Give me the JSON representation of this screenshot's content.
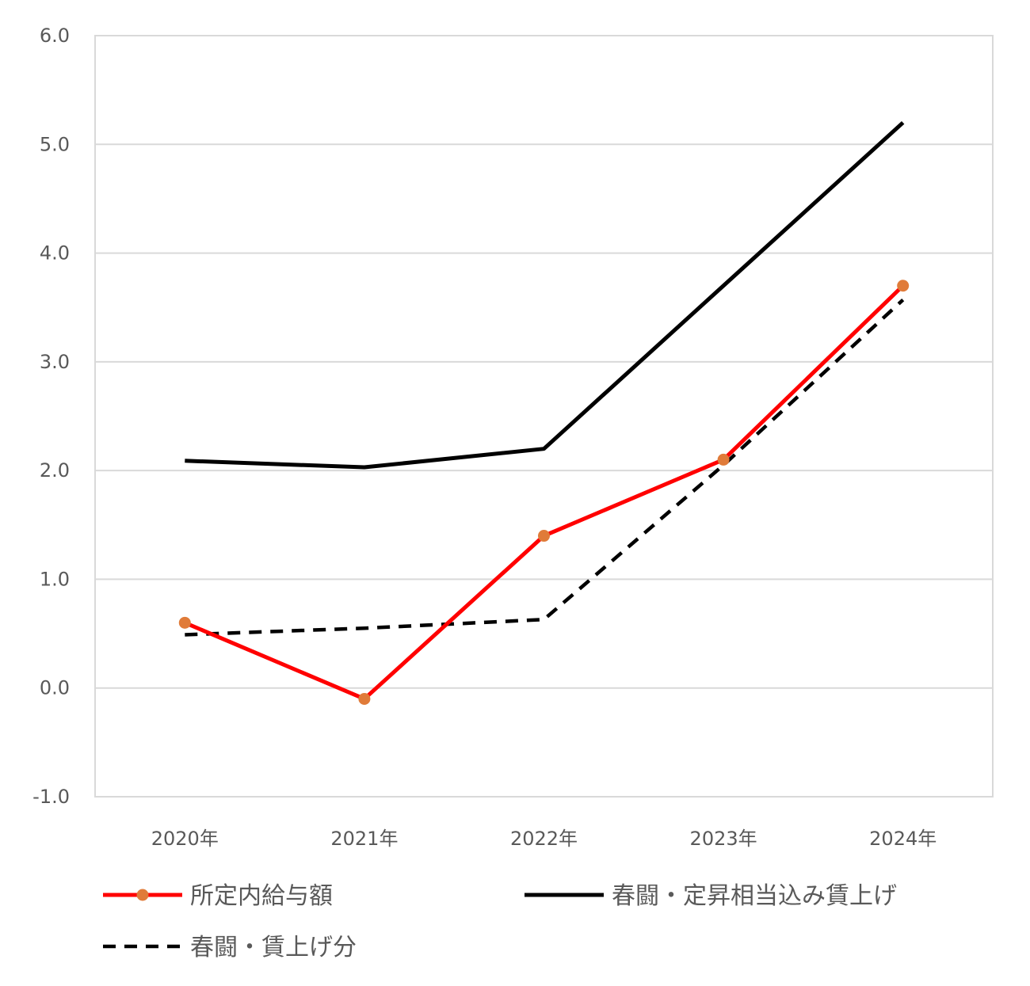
{
  "chart_data": {
    "type": "line",
    "categories": [
      "2020年",
      "2021年",
      "2022年",
      "2023年",
      "2024年"
    ],
    "series": [
      {
        "name": "所定内給与額",
        "values": [
          0.6,
          -0.1,
          1.4,
          2.1,
          3.7
        ],
        "color": "#ff0000",
        "dash": "solid",
        "markers": true,
        "marker_color": "#e07b39"
      },
      {
        "name": "春闘・定昇相当込み賃上げ",
        "values": [
          2.09,
          2.03,
          2.2,
          3.7,
          5.2
        ],
        "color": "#000000",
        "dash": "solid",
        "markers": false
      },
      {
        "name": "春闘・賃上げ分",
        "values": [
          0.49,
          0.55,
          0.63,
          2.05,
          3.57
        ],
        "color": "#000000",
        "dash": "dashed",
        "markers": false
      }
    ],
    "y_ticks": [
      "6.0",
      "5.0",
      "4.0",
      "3.0",
      "2.0",
      "1.0",
      "0.0",
      "-1.0"
    ],
    "ylim": [
      -1.0,
      6.0
    ],
    "grid": true,
    "legend_position": "bottom"
  }
}
